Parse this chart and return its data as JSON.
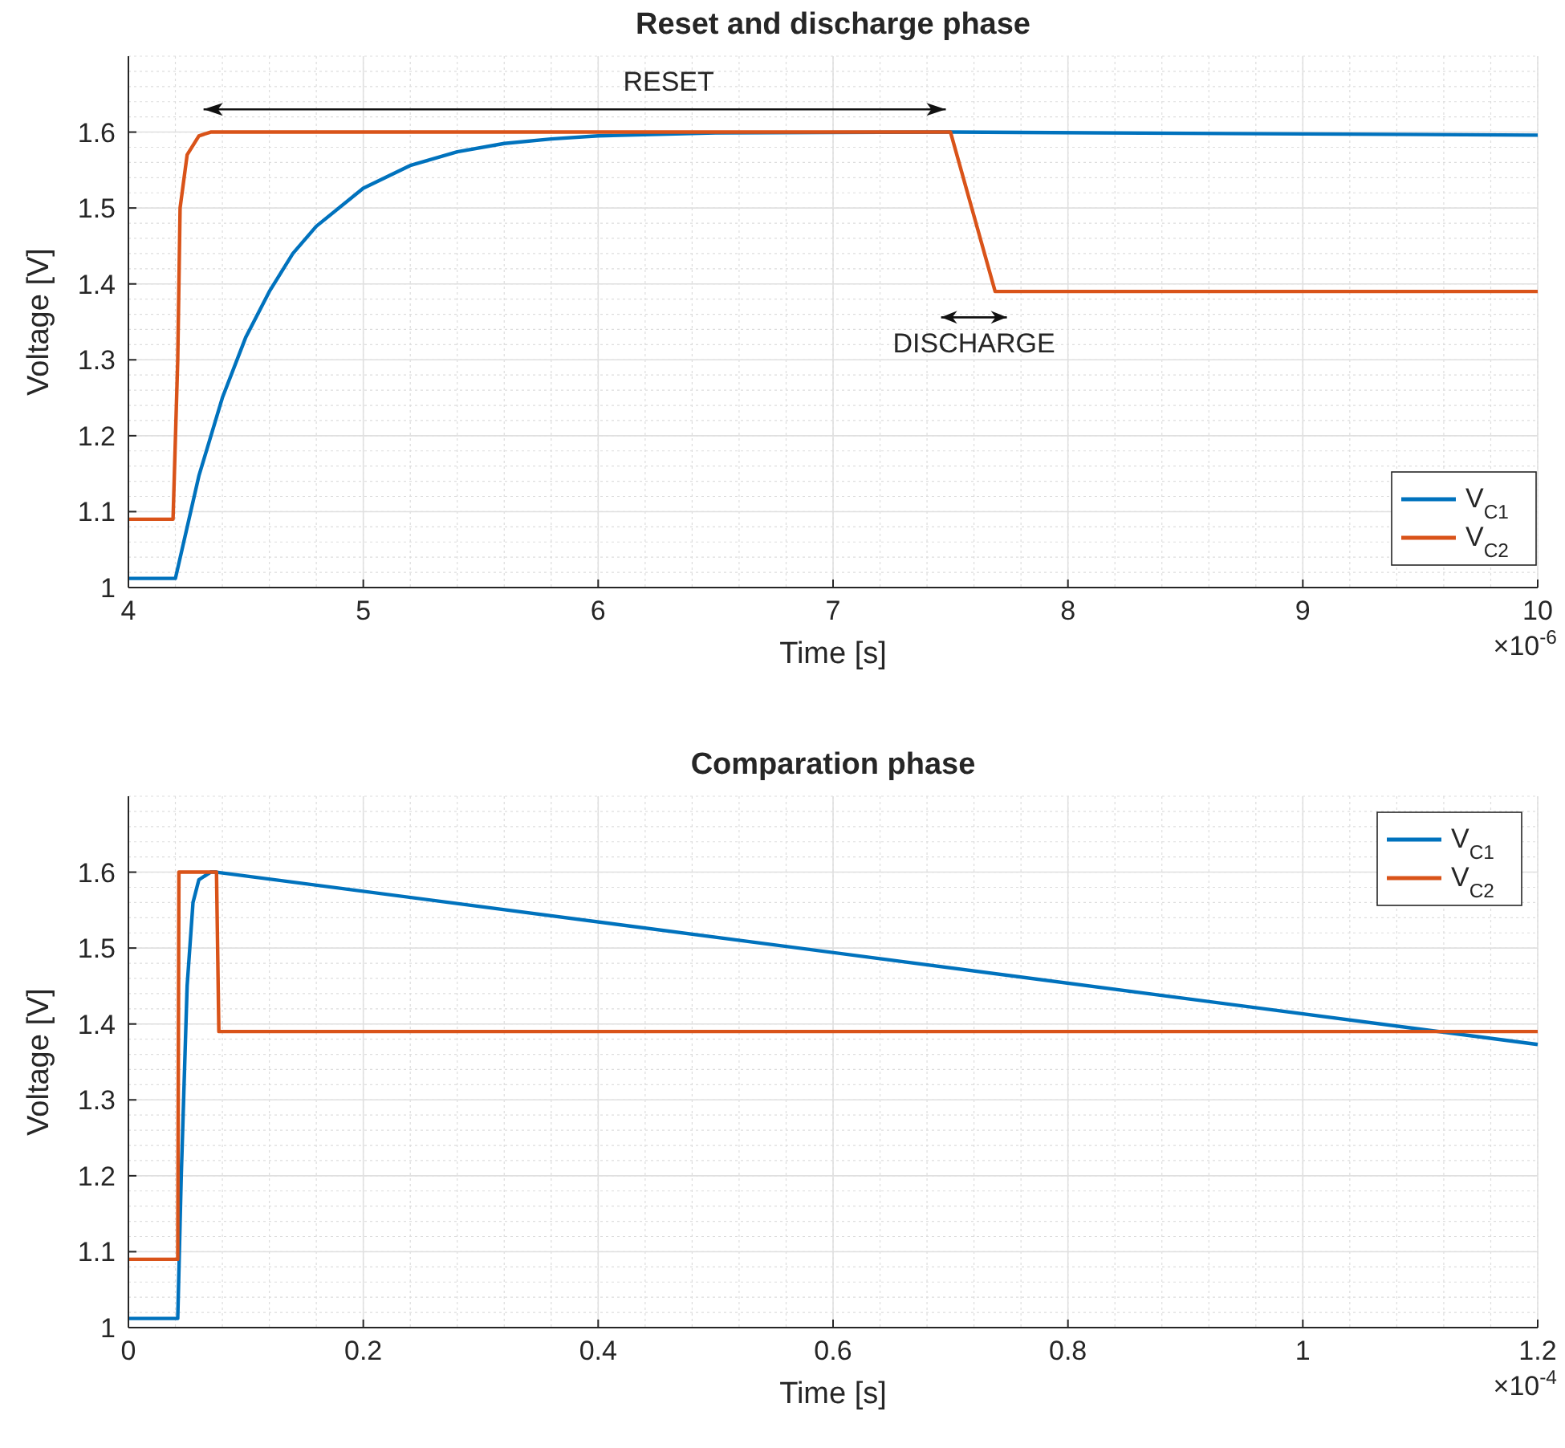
{
  "chart_data": [
    {
      "type": "line",
      "title": "Reset and discharge phase",
      "xlabel": "Time [s]",
      "ylabel": "Voltage [V]",
      "xlim": [
        4,
        10
      ],
      "xticks": [
        4,
        5,
        6,
        7,
        8,
        9,
        10
      ],
      "ylim": [
        1,
        1.7
      ],
      "yticks": [
        1,
        1.1,
        1.2,
        1.3,
        1.4,
        1.5,
        1.6
      ],
      "grid": true,
      "legend": "bottom right",
      "line_style": "solid",
      "annotations": [
        "RESET",
        "DISCHARGE",
        "×10$^{-6}$"
      ],
      "series": [
        {
          "name": "V$_{C1}$",
          "color": "#0072bd",
          "x": [
            4,
            4.2,
            4.3,
            4.4,
            4.5,
            4.6,
            4.7,
            4.8,
            5,
            5.2,
            5.4,
            5.6,
            5.8,
            6,
            6.5,
            7.5,
            10
          ],
          "values": [
            1.012,
            1.012,
            1.147,
            1.25,
            1.33,
            1.39,
            1.44,
            1.476,
            1.526,
            1.556,
            1.574,
            1.585,
            1.591,
            1.595,
            1.599,
            1.6,
            1.596
          ]
        },
        {
          "name": "V$_{C2}$",
          "color": "#d95319",
          "x": [
            4,
            4.19,
            4.21,
            4.22,
            4.25,
            4.3,
            4.35,
            7.5,
            7.69,
            10
          ],
          "values": [
            1.09,
            1.09,
            1.3,
            1.5,
            1.57,
            1.595,
            1.6,
            1.6,
            1.39,
            1.39
          ]
        }
      ]
    },
    {
      "type": "line",
      "title": "Comparation phase",
      "xlabel": "Time [s]",
      "ylabel": "Voltage [V]",
      "xlim": [
        0,
        1.2
      ],
      "xticks": [
        0,
        0.2,
        0.4,
        0.6,
        0.8,
        1,
        1.2
      ],
      "ylim": [
        1,
        1.7
      ],
      "yticks": [
        1,
        1.1,
        1.2,
        1.3,
        1.4,
        1.5,
        1.6
      ],
      "grid": true,
      "legend": "top right",
      "line_style": "solid",
      "annotations": [
        "×10$^{-4}$"
      ],
      "series": [
        {
          "name": "V$_{C1}$",
          "color": "#0072bd",
          "x": [
            0,
            0.042,
            0.045,
            0.05,
            0.055,
            0.06,
            0.07,
            0.075,
            1.2
          ],
          "values": [
            1.012,
            1.012,
            1.2,
            1.45,
            1.56,
            1.59,
            1.6,
            1.6,
            1.373
          ]
        },
        {
          "name": "V$_{C2}$",
          "color": "#d95319",
          "x": [
            0,
            0.042,
            0.043,
            0.075,
            0.077,
            1.2
          ],
          "values": [
            1.09,
            1.09,
            1.6,
            1.6,
            1.39,
            1.39
          ]
        }
      ]
    }
  ]
}
